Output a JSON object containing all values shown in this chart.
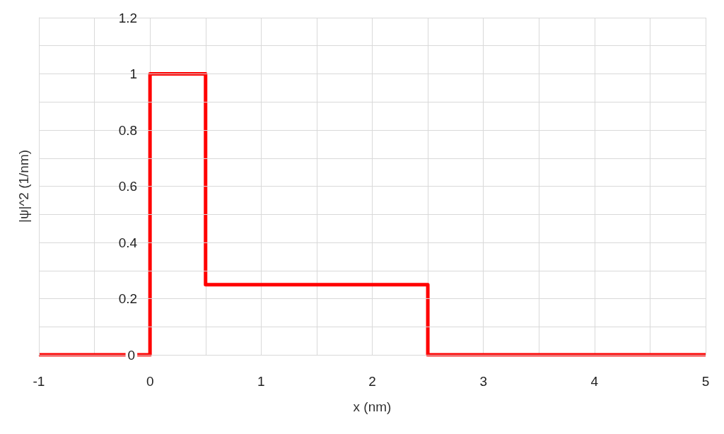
{
  "chart_data": {
    "type": "step",
    "xlabel": "x (nm)",
    "ylabel": "|ψ|^2 (1/nm)",
    "x": [
      -1,
      0,
      0.5,
      2.5,
      5
    ],
    "series": [
      {
        "color": "#ff0000",
        "values": [
          0,
          1,
          0.25,
          0,
          0
        ]
      }
    ],
    "xlim": [
      -1,
      5
    ],
    "xticks": [
      -1,
      0,
      1,
      2,
      3,
      4,
      5
    ],
    "ylim": [
      0,
      1.2
    ],
    "yticks": [
      0,
      0.2,
      0.4,
      0.6,
      0.8,
      1,
      1.2
    ],
    "grid": true,
    "marker": "none",
    "line_style": "solid"
  }
}
